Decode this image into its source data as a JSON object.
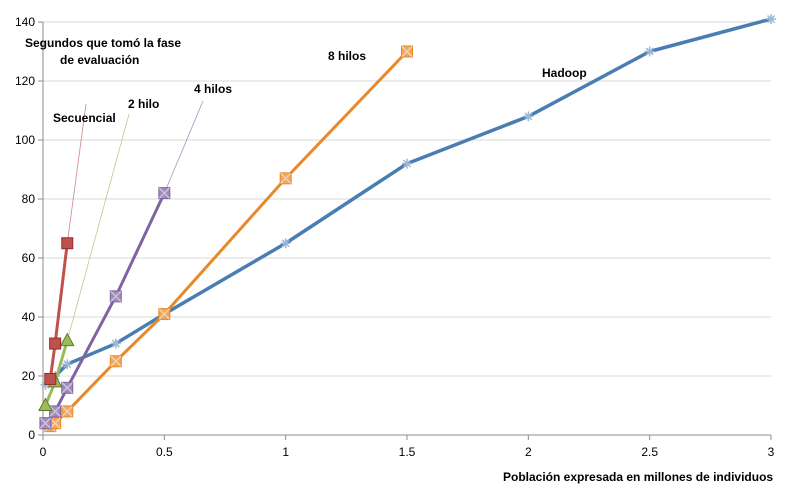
{
  "chart_data": {
    "type": "line",
    "xlabel": "Población expresada en millones de individuos",
    "ylabel_lines": [
      "Segundos que tomó la fase",
      "de evaluación"
    ],
    "xlim": [
      0,
      3
    ],
    "ylim": [
      0,
      140
    ],
    "xticks": [
      0,
      0.5,
      1,
      1.5,
      2,
      2.5,
      3
    ],
    "xtick_labels": [
      "0",
      "0.5",
      "1",
      "1.5",
      "2",
      "2.5",
      "3"
    ],
    "yticks": [
      0,
      20,
      40,
      60,
      80,
      100,
      120,
      140
    ],
    "ytick_labels": [
      "0",
      "20",
      "40",
      "60",
      "80",
      "100",
      "120",
      "140"
    ],
    "grid": "horizontal",
    "legend": "callout labels",
    "series": [
      {
        "name": "Hadoop",
        "color": "#4a7eb3",
        "marker": "star",
        "x": [
          0.01,
          0.05,
          0.1,
          0.3,
          0.5,
          1,
          1.5,
          2,
          2.5,
          3
        ],
        "y": [
          17,
          20,
          24,
          31,
          41,
          65,
          92,
          108,
          130,
          141
        ]
      },
      {
        "name": "8 hilos",
        "color": "#e8892b",
        "marker": "x-square",
        "x": [
          0.03,
          0.05,
          0.1,
          0.3,
          0.5,
          1,
          1.5
        ],
        "y": [
          3,
          4,
          8,
          25,
          41,
          87,
          130
        ]
      },
      {
        "name": "4 hilos",
        "color": "#8064a2",
        "marker": "x-square",
        "x": [
          0.01,
          0.05,
          0.1,
          0.3,
          0.5
        ],
        "y": [
          4,
          8,
          16,
          47,
          82
        ]
      },
      {
        "name": "2 hilo",
        "color": "#9bbb59",
        "marker": "triangle",
        "x": [
          0.01,
          0.05,
          0.1
        ],
        "y": [
          10,
          18,
          32
        ]
      },
      {
        "name": "Secuencial",
        "color": "#c0504d",
        "marker": "square",
        "x": [
          0.03,
          0.05,
          0.1
        ],
        "y": [
          19,
          31,
          65
        ]
      }
    ]
  }
}
